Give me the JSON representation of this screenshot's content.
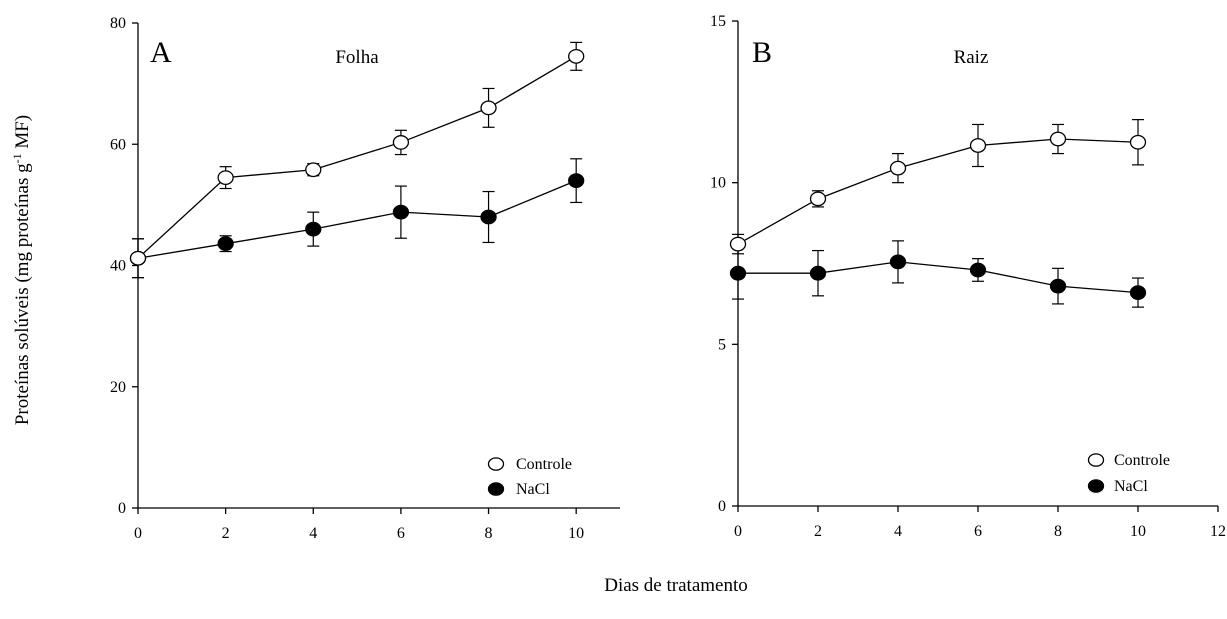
{
  "chart_data": [
    {
      "type": "line",
      "panel_label": "A",
      "title": "Folha",
      "x": [
        0,
        2,
        4,
        6,
        8,
        10
      ],
      "xlim": [
        0,
        11
      ],
      "ylim": [
        0,
        80
      ],
      "xticks": [
        0,
        2,
        4,
        6,
        8,
        10
      ],
      "yticks": [
        0,
        20,
        40,
        60,
        80
      ],
      "legend_placement": "bottom-right",
      "series": [
        {
          "name": "Controle",
          "marker": "open-circle",
          "values": [
            41.2,
            54.5,
            55.8,
            60.3,
            66.0,
            74.5
          ],
          "errors": [
            3.2,
            1.8,
            1.0,
            2.0,
            3.2,
            2.3
          ]
        },
        {
          "name": "NaCl",
          "marker": "filled-circle",
          "values": [
            41.2,
            43.6,
            46.0,
            48.8,
            48.0,
            54.0
          ],
          "errors": [
            3.2,
            1.3,
            2.8,
            4.3,
            4.2,
            3.6
          ]
        }
      ]
    },
    {
      "type": "line",
      "panel_label": "B",
      "title": "Raiz",
      "x": [
        0,
        2,
        4,
        6,
        8,
        10
      ],
      "xlim": [
        0,
        12
      ],
      "ylim": [
        0,
        15
      ],
      "xticks": [
        0,
        2,
        4,
        6,
        8,
        10,
        12
      ],
      "yticks": [
        0,
        5,
        10,
        15
      ],
      "legend_placement": "bottom-right",
      "series": [
        {
          "name": "Controle",
          "marker": "open-circle",
          "values": [
            8.1,
            9.5,
            10.45,
            11.15,
            11.35,
            11.25
          ],
          "errors": [
            0.3,
            0.25,
            0.45,
            0.65,
            0.45,
            0.7
          ]
        },
        {
          "name": "NaCl",
          "marker": "filled-circle",
          "values": [
            7.2,
            7.2,
            7.55,
            7.3,
            6.8,
            6.6
          ],
          "errors": [
            0.8,
            0.7,
            0.65,
            0.35,
            0.55,
            0.45
          ]
        }
      ]
    }
  ],
  "ylabel_prefix": "Proteínas solúveis (mg proteínas  g",
  "ylabel_sup": "-1",
  "ylabel_suffix": " MF)",
  "xlabel": "Dias de tratamento"
}
